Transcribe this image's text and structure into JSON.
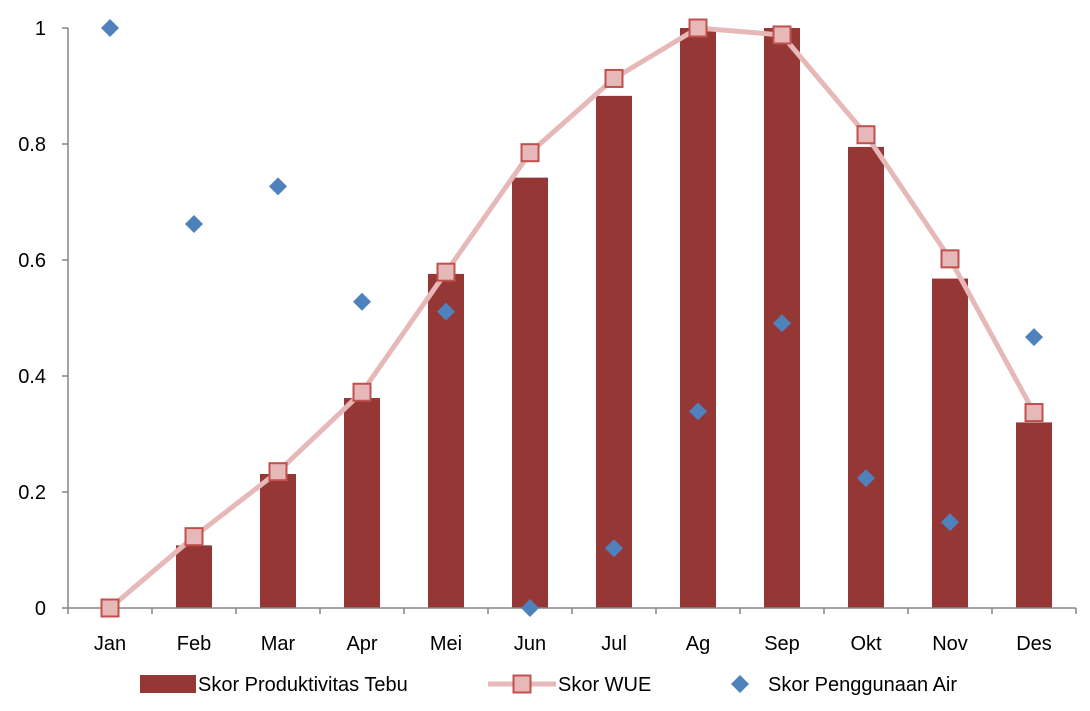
{
  "chart_data": {
    "type": "bar",
    "categories": [
      "Jan",
      "Feb",
      "Mar",
      "Apr",
      "Mei",
      "Jun",
      "Jul",
      "Ag",
      "Sep",
      "Okt",
      "Nov",
      "Des"
    ],
    "ylim": [
      0,
      1
    ],
    "yticks": [
      "0",
      "0.2",
      "0.4",
      "0.6",
      "0.8",
      "1"
    ],
    "grid": false,
    "legend_position": "bottom",
    "series": [
      {
        "name": "Skor Produktivitas Tebu",
        "type": "bar",
        "color": "#953735",
        "values": [
          0,
          0.108,
          0.231,
          0.362,
          0.576,
          0.742,
          0.883,
          1.0,
          1.0,
          0.795,
          0.568,
          0.32
        ]
      },
      {
        "name": "Skor WUE",
        "type": "line",
        "color": "#E6B9B8",
        "marker_color": "#C0504D",
        "marker": "square",
        "values": [
          0,
          0.123,
          0.235,
          0.372,
          0.579,
          0.785,
          0.913,
          1.0,
          0.988,
          0.816,
          0.602,
          0.337
        ]
      },
      {
        "name": "Skor Penggunaan Air",
        "type": "scatter",
        "color": "#4F81BD",
        "marker": "diamond",
        "values": [
          1.0,
          0.662,
          0.727,
          0.528,
          0.511,
          0.0,
          0.103,
          0.339,
          0.491,
          0.224,
          0.148,
          0.467
        ]
      }
    ]
  }
}
